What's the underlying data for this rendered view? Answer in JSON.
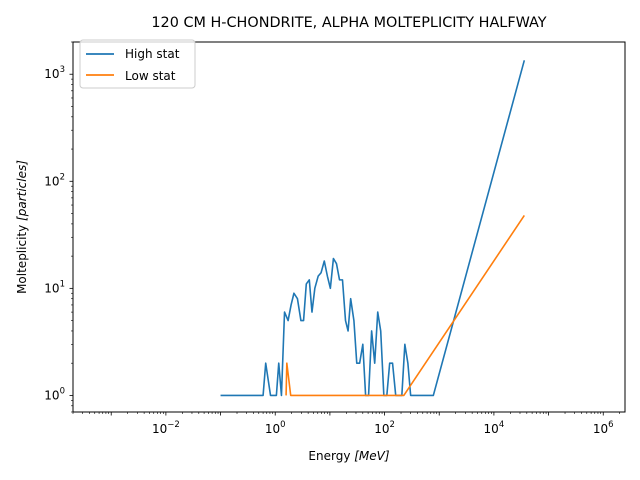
{
  "chart_data": {
    "type": "line",
    "title": "120 CM H-CHONDRITE, ALPHA MOLTEPLICITY HALFWAY",
    "xlabel_prefix": "Energy ",
    "xlabel_unit": "[MeV]",
    "ylabel_prefix": "Molteplicity ",
    "ylabel_unit": "[particles]",
    "xscale": "log",
    "yscale": "log",
    "xlim": [
      0.0002,
      2500000
    ],
    "ylim": [
      0.7,
      2000
    ],
    "xticks": [
      {
        "value": 0.01,
        "base": "10",
        "exp": "−2"
      },
      {
        "value": 1,
        "base": "10",
        "exp": "0"
      },
      {
        "value": 100,
        "base": "10",
        "exp": "2"
      },
      {
        "value": 10000,
        "base": "10",
        "exp": "4"
      },
      {
        "value": 1000000,
        "base": "10",
        "exp": "6"
      }
    ],
    "yticks": [
      {
        "value": 1,
        "base": "10",
        "exp": "0"
      },
      {
        "value": 10,
        "base": "10",
        "exp": "1"
      },
      {
        "value": 100,
        "base": "10",
        "exp": "2"
      },
      {
        "value": 1000,
        "base": "10",
        "exp": "3"
      }
    ],
    "legend_position": "top-left",
    "series": [
      {
        "name": "High stat",
        "color": "#1f77b4",
        "points": [
          [
            0.1,
            1
          ],
          [
            0.16,
            1
          ],
          [
            0.2,
            1
          ],
          [
            0.29,
            1
          ],
          [
            0.38,
            1
          ],
          [
            0.43,
            1
          ],
          [
            0.6,
            1
          ],
          [
            0.67,
            2
          ],
          [
            0.82,
            1
          ],
          [
            1.05,
            1
          ],
          [
            1.16,
            2
          ],
          [
            1.3,
            1
          ],
          [
            1.48,
            6
          ],
          [
            1.72,
            5
          ],
          [
            1.95,
            7
          ],
          [
            2.2,
            9
          ],
          [
            2.55,
            8
          ],
          [
            2.95,
            5
          ],
          [
            3.3,
            5
          ],
          [
            3.7,
            11
          ],
          [
            4.2,
            12
          ],
          [
            4.7,
            6
          ],
          [
            5.3,
            10
          ],
          [
            6.1,
            13
          ],
          [
            6.9,
            14
          ],
          [
            7.9,
            18
          ],
          [
            9.0,
            13
          ],
          [
            10.2,
            10
          ],
          [
            11.6,
            19
          ],
          [
            13.2,
            17
          ],
          [
            15,
            12
          ],
          [
            17,
            12
          ],
          [
            19.3,
            5
          ],
          [
            21.5,
            4
          ],
          [
            24,
            8
          ],
          [
            27.5,
            5
          ],
          [
            31,
            2
          ],
          [
            35,
            2
          ],
          [
            40,
            3
          ],
          [
            45,
            1
          ],
          [
            51,
            1
          ],
          [
            58,
            4
          ],
          [
            66,
            2
          ],
          [
            75,
            6
          ],
          [
            85,
            4
          ],
          [
            97,
            1
          ],
          [
            110,
            1
          ],
          [
            124,
            2
          ],
          [
            140,
            2
          ],
          [
            160,
            1
          ],
          [
            182,
            1
          ],
          [
            207,
            1
          ],
          [
            235,
            3
          ],
          [
            267,
            2
          ],
          [
            300,
            1
          ],
          [
            335,
            1
          ],
          [
            380,
            1
          ],
          [
            430,
            1
          ],
          [
            490,
            1
          ],
          [
            560,
            1
          ],
          [
            625,
            1
          ],
          [
            700,
            1
          ],
          [
            780,
            1
          ],
          [
            36000,
            1350
          ]
        ]
      },
      {
        "name": "Low stat",
        "color": "#ff7f0e",
        "points": [
          [
            1.58,
            1
          ],
          [
            1.63,
            2
          ],
          [
            1.92,
            1
          ],
          [
            4.5,
            1
          ],
          [
            5.0,
            1
          ],
          [
            7.4,
            1
          ],
          [
            8.2,
            1
          ],
          [
            10.1,
            1
          ],
          [
            11.4,
            1
          ],
          [
            13.0,
            1
          ],
          [
            20,
            1
          ],
          [
            22,
            1
          ],
          [
            26,
            1
          ],
          [
            29,
            1
          ],
          [
            85,
            1
          ],
          [
            108,
            1
          ],
          [
            180,
            1
          ],
          [
            200,
            1
          ],
          [
            225,
            1
          ],
          [
            36000,
            48
          ]
        ]
      }
    ]
  }
}
